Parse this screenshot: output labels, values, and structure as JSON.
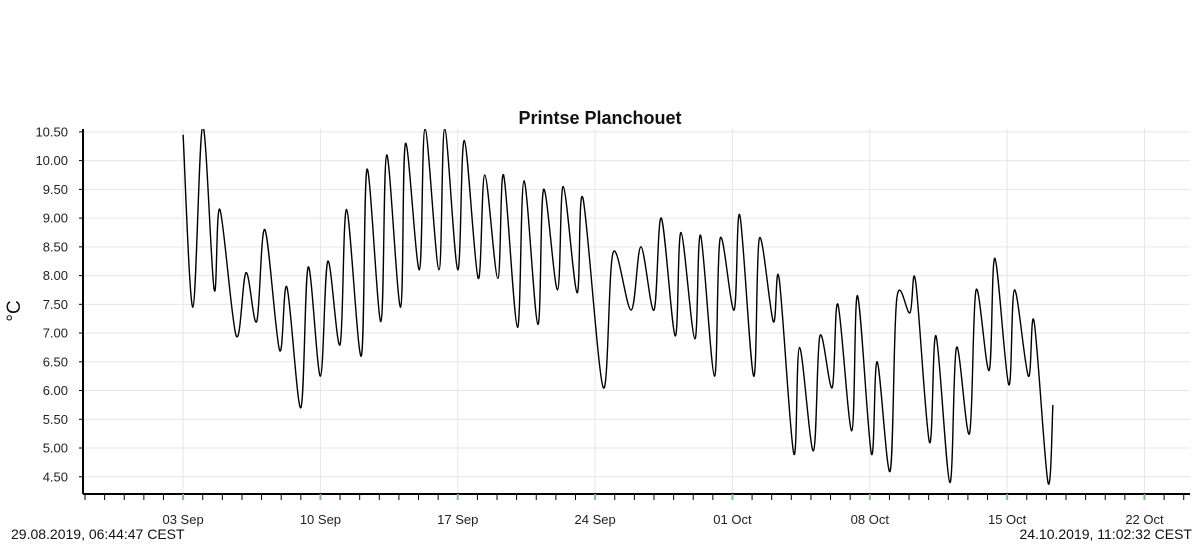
{
  "chart_data": {
    "type": "line",
    "title": "Printse Planchouet",
    "ylabel": "°C",
    "xlabel": "",
    "ylim": [
      4.2,
      10.55
    ],
    "xlim": [
      "2019-08-29",
      "2019-10-24"
    ],
    "grid": true,
    "legend": "none",
    "line_color": "#000000",
    "y_ticks": [
      "4.50",
      "5.00",
      "5.50",
      "6.00",
      "6.50",
      "7.00",
      "7.50",
      "8.00",
      "8.50",
      "9.00",
      "9.50",
      "10.00",
      "10.50"
    ],
    "x_ticks": [
      {
        "date": "2019-09-03",
        "label": "03 Sep"
      },
      {
        "date": "2019-09-10",
        "label": "10 Sep"
      },
      {
        "date": "2019-09-17",
        "label": "17 Sep"
      },
      {
        "date": "2019-09-24",
        "label": "24 Sep"
      },
      {
        "date": "2019-10-01",
        "label": "01 Oct"
      },
      {
        "date": "2019-10-08",
        "label": "08 Oct"
      },
      {
        "date": "2019-10-15",
        "label": "15 Oct"
      },
      {
        "date": "2019-10-22",
        "label": "22 Oct"
      }
    ],
    "series": [
      {
        "values": [
          [
            "2019-09-03 00:00",
            10.45
          ],
          [
            "2019-09-03 12:00",
            7.45
          ],
          [
            "2019-09-04 00:00",
            10.6
          ],
          [
            "2019-09-04 14:00",
            7.75
          ],
          [
            "2019-09-04 21:00",
            9.15
          ],
          [
            "2019-09-05 17:00",
            6.95
          ],
          [
            "2019-09-06 05:00",
            8.05
          ],
          [
            "2019-09-06 18:00",
            7.2
          ],
          [
            "2019-09-07 04:00",
            8.8
          ],
          [
            "2019-09-07 22:00",
            6.7
          ],
          [
            "2019-09-08 07:00",
            7.8
          ],
          [
            "2019-09-09 00:00",
            5.7
          ],
          [
            "2019-09-09 09:00",
            8.15
          ],
          [
            "2019-09-10 00:00",
            6.25
          ],
          [
            "2019-09-10 09:00",
            8.25
          ],
          [
            "2019-09-11 00:00",
            6.8
          ],
          [
            "2019-09-11 08:00",
            9.15
          ],
          [
            "2019-09-12 02:00",
            6.6
          ],
          [
            "2019-09-12 09:00",
            9.85
          ],
          [
            "2019-09-13 02:00",
            7.2
          ],
          [
            "2019-09-13 09:00",
            10.1
          ],
          [
            "2019-09-14 02:00",
            7.45
          ],
          [
            "2019-09-14 08:00",
            10.3
          ],
          [
            "2019-09-15 01:00",
            8.1
          ],
          [
            "2019-09-15 08:00",
            10.55
          ],
          [
            "2019-09-16 01:00",
            8.1
          ],
          [
            "2019-09-16 08:00",
            10.55
          ],
          [
            "2019-09-17 00:00",
            8.1
          ],
          [
            "2019-09-17 08:00",
            10.35
          ],
          [
            "2019-09-18 01:00",
            7.95
          ],
          [
            "2019-09-18 09:00",
            9.75
          ],
          [
            "2019-09-19 01:00",
            7.95
          ],
          [
            "2019-09-19 08:00",
            9.75
          ],
          [
            "2019-09-20 01:00",
            7.1
          ],
          [
            "2019-09-20 09:00",
            9.65
          ],
          [
            "2019-09-21 02:00",
            7.15
          ],
          [
            "2019-09-21 09:00",
            9.5
          ],
          [
            "2019-09-22 02:00",
            7.75
          ],
          [
            "2019-09-22 09:00",
            9.55
          ],
          [
            "2019-09-23 02:00",
            7.7
          ],
          [
            "2019-09-23 09:00",
            9.35
          ],
          [
            "2019-09-24 10:00",
            6.05
          ],
          [
            "2019-09-24 22:00",
            8.4
          ],
          [
            "2019-09-25 20:00",
            7.4
          ],
          [
            "2019-09-26 08:00",
            8.5
          ],
          [
            "2019-09-27 00:00",
            7.4
          ],
          [
            "2019-09-27 09:00",
            9.0
          ],
          [
            "2019-09-28 02:00",
            6.95
          ],
          [
            "2019-09-28 09:00",
            8.75
          ],
          [
            "2019-09-29 02:00",
            6.9
          ],
          [
            "2019-09-29 09:00",
            8.7
          ],
          [
            "2019-09-30 02:00",
            6.25
          ],
          [
            "2019-09-30 09:00",
            8.65
          ],
          [
            "2019-10-01 02:00",
            7.4
          ],
          [
            "2019-10-01 09:00",
            9.05
          ],
          [
            "2019-10-02 02:00",
            6.25
          ],
          [
            "2019-10-02 09:00",
            8.65
          ],
          [
            "2019-10-03 02:00",
            7.2
          ],
          [
            "2019-10-03 09:00",
            7.95
          ],
          [
            "2019-10-04 03:00",
            4.9
          ],
          [
            "2019-10-04 10:00",
            6.75
          ],
          [
            "2019-10-05 03:00",
            4.95
          ],
          [
            "2019-10-05 11:00",
            6.95
          ],
          [
            "2019-10-06 02:00",
            6.05
          ],
          [
            "2019-10-06 09:00",
            7.5
          ],
          [
            "2019-10-07 02:00",
            5.3
          ],
          [
            "2019-10-07 09:00",
            7.65
          ],
          [
            "2019-10-08 02:00",
            4.9
          ],
          [
            "2019-10-08 09:00",
            6.5
          ],
          [
            "2019-10-09 01:00",
            4.6
          ],
          [
            "2019-10-09 09:00",
            7.6
          ],
          [
            "2019-10-10 01:00",
            7.35
          ],
          [
            "2019-10-10 08:00",
            7.9
          ],
          [
            "2019-10-11 01:00",
            5.1
          ],
          [
            "2019-10-11 09:00",
            6.95
          ],
          [
            "2019-10-12 02:00",
            4.4
          ],
          [
            "2019-10-12 10:00",
            6.75
          ],
          [
            "2019-10-13 02:00",
            5.25
          ],
          [
            "2019-10-13 10:00",
            7.75
          ],
          [
            "2019-10-14 02:00",
            6.35
          ],
          [
            "2019-10-14 09:00",
            8.3
          ],
          [
            "2019-10-15 02:00",
            6.1
          ],
          [
            "2019-10-15 09:00",
            7.75
          ],
          [
            "2019-10-16 02:00",
            6.25
          ],
          [
            "2019-10-16 09:00",
            7.2
          ],
          [
            "2019-10-17 02:00",
            4.4
          ],
          [
            "2019-10-17 08:00",
            5.75
          ]
        ]
      }
    ]
  },
  "footer": {
    "start": "29.08.2019, 06:44:47 CEST",
    "end": "24.10.2019, 11:02:32 CEST"
  }
}
